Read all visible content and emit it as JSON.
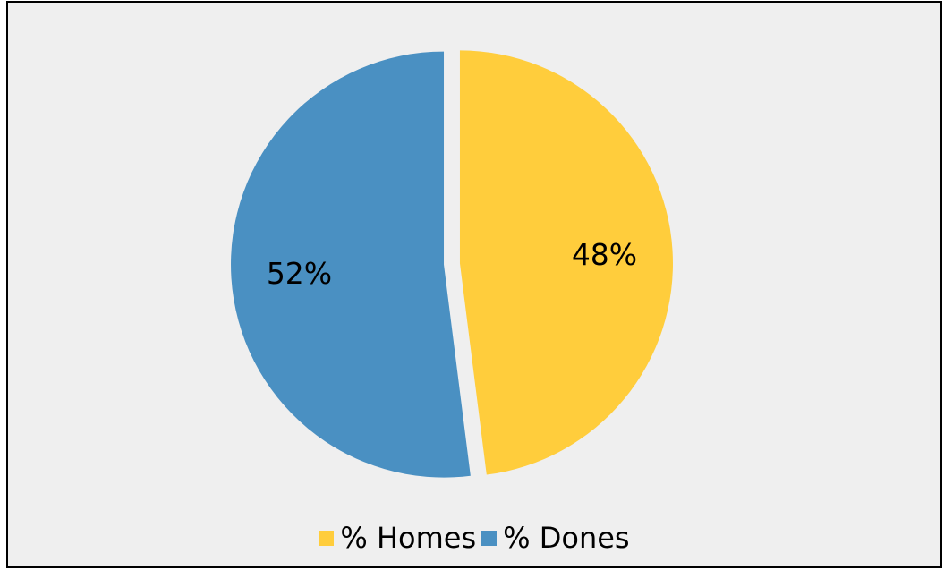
{
  "chart_data": {
    "type": "pie",
    "title": "",
    "categories": [
      "% Homes",
      "% Dones"
    ],
    "values": [
      48,
      52
    ],
    "data_labels": [
      "48%",
      "52%"
    ],
    "colors": [
      "#ffcd3c",
      "#4a90c2"
    ],
    "exploded": true,
    "start_angle": "12 o'clock, clockwise",
    "legend_position": "bottom",
    "legend": [
      "% Homes",
      "% Dones"
    ]
  }
}
